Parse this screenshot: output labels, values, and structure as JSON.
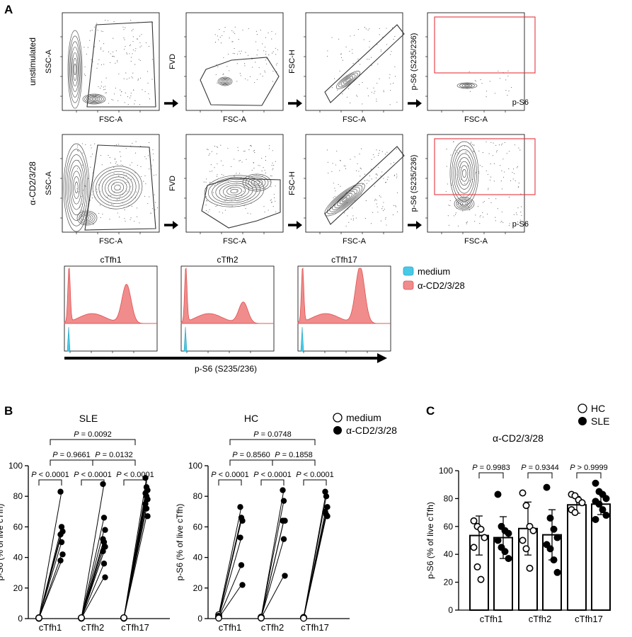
{
  "panel_labels": {
    "a": "A",
    "b": "B",
    "c": "C"
  },
  "gating": {
    "row_labels": [
      "unstimulated",
      "α-CD2/3/28"
    ],
    "plots": [
      {
        "xlabel": "FSC-A",
        "ylabel": "SSC-A"
      },
      {
        "xlabel": "FSC-A",
        "ylabel": "FVD"
      },
      {
        "xlabel": "FSC-A",
        "ylabel": "FSC-H"
      },
      {
        "xlabel": "FSC-A",
        "ylabel": "p-S6 (S235/236)",
        "gate_label": "p-S6"
      }
    ],
    "colors": {
      "contour": "#555555",
      "gate": "#333333",
      "ps6_gate": "#e8343c"
    }
  },
  "histograms": {
    "titles": [
      "cTfh1",
      "cTfh2",
      "cTfh17"
    ],
    "legend": [
      {
        "label": "medium",
        "color": "#49c9e6"
      },
      {
        "label": "α-CD2/3/28",
        "color": "#f08c8c"
      }
    ],
    "xlabel": "p-S6 (S235/236)"
  },
  "chart_data": [
    {
      "type": "scatter",
      "panel": "B",
      "title": "SLE",
      "categories": [
        "cTfh1",
        "cTfh2",
        "cTfh17"
      ],
      "ylabel": "p-S6 (% of live cTfh)",
      "ylim": [
        0,
        100
      ],
      "yticks": [
        0,
        20,
        40,
        60,
        80,
        100
      ],
      "legend": [
        {
          "label": "medium",
          "marker": "open"
        },
        {
          "label": "α-CD2/3/28",
          "marker": "filled"
        }
      ],
      "series": [
        {
          "name": "medium",
          "values": [
            [
              0.2,
              0.3,
              0.5,
              0.4,
              0.6,
              0.2,
              0.3,
              0.4
            ],
            [
              0.3,
              0.5,
              0.4,
              0.6,
              0.2,
              0.3,
              0.4,
              0.5
            ],
            [
              0.4,
              0.3,
              0.5,
              0.2,
              0.6,
              0.3,
              0.4,
              0.5
            ]
          ]
        },
        {
          "name": "α-CD2/3/28",
          "values": [
            [
              83,
              60,
              57,
              55,
              50,
              42,
              38
            ],
            [
              88,
              66,
              58,
              52,
              50,
              47,
              44,
              36,
              27
            ],
            [
              92,
              86,
              84,
              82,
              80,
              78,
              75,
              72,
              67
            ]
          ]
        }
      ],
      "comparisons": [
        {
          "text": "P < 0.0001",
          "level": 0
        },
        {
          "text": "P < 0.0001",
          "level": 0
        },
        {
          "text": "P < 0.0001",
          "level": 0
        },
        {
          "text": "P = 0.9661",
          "level": 1
        },
        {
          "text": "P = 0.0132",
          "level": 1
        },
        {
          "text": "P = 0.0092",
          "level": 2
        }
      ]
    },
    {
      "type": "scatter",
      "panel": "B",
      "title": "HC",
      "categories": [
        "cTfh1",
        "cTfh2",
        "cTfh17"
      ],
      "ylabel": "p-S6 (% of live cTfh)",
      "ylim": [
        0,
        100
      ],
      "yticks": [
        0,
        20,
        40,
        60,
        80,
        100
      ],
      "series": [
        {
          "name": "medium",
          "values": [
            [
              2.5,
              1.5,
              1,
              0.8,
              0.5,
              0.3
            ],
            [
              1,
              0.8,
              0.5,
              0.3,
              0.6,
              0.4
            ],
            [
              0.8,
              0.5,
              0.3,
              0.6,
              0.4,
              0.2
            ]
          ]
        },
        {
          "name": "α-CD2/3/28",
          "values": [
            [
              73,
              66,
              64,
              53,
              35,
              22
            ],
            [
              84,
              77,
              64,
              64,
              52,
              28
            ],
            [
              83,
              80,
              73,
              70,
              68,
              67
            ]
          ]
        }
      ],
      "comparisons": [
        {
          "text": "P < 0.0001",
          "level": 0
        },
        {
          "text": "P < 0.0001",
          "level": 0
        },
        {
          "text": "P < 0.0001",
          "level": 0
        },
        {
          "text": "P = 0.8560",
          "level": 1
        },
        {
          "text": "P = 0.1858",
          "level": 1
        },
        {
          "text": "P = 0.0748",
          "level": 2
        }
      ]
    },
    {
      "type": "bar",
      "panel": "C",
      "title": "α-CD2/3/28",
      "categories": [
        "cTfh1",
        "cTfh2",
        "cTfh17"
      ],
      "ylabel": "p-S6 (% of live cTfh)",
      "ylim": [
        0,
        100
      ],
      "yticks": [
        0,
        20,
        40,
        60,
        80,
        100
      ],
      "legend": [
        {
          "label": "HC",
          "marker": "open"
        },
        {
          "label": "SLE",
          "marker": "filled"
        }
      ],
      "series": [
        {
          "name": "HC",
          "values": [
            53.5,
            58.5,
            75.5
          ],
          "errors": [
            14,
            19,
            6
          ],
          "points": [
            [
              64,
              60,
              58,
              52,
              45,
              31,
              22
            ],
            [
              84,
              75,
              60,
              57,
              50,
              44,
              30
            ],
            [
              83,
              82,
              79,
              77,
              72,
              70
            ]
          ]
        },
        {
          "name": "SLE",
          "values": [
            52,
            54,
            76
          ],
          "errors": [
            15,
            18,
            7.5
          ],
          "points": [
            [
              83,
              60,
              57,
              55,
              50,
              45,
              42,
              37
            ],
            [
              88,
              66,
              58,
              52,
              47,
              44,
              36,
              27
            ],
            [
              91,
              85,
              83,
              80,
              78,
              76,
              72,
              68,
              65
            ]
          ]
        }
      ],
      "comparisons": [
        {
          "text": "P = 0.9983"
        },
        {
          "text": "P = 0.9344"
        },
        {
          "text": "P > 0.9999"
        }
      ]
    }
  ]
}
